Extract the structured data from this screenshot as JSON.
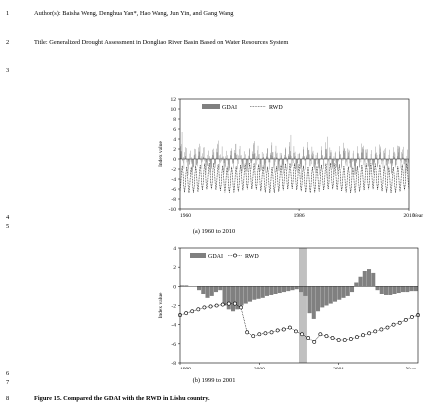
{
  "lines": [
    {
      "num": "1",
      "text": "Author(s): Baisha Weng, Denghua Yan*, Hao Wang, Jun Yin, and Gang Wang"
    },
    {
      "num": "2",
      "text": "Title: Generalized Drought Assessment in Dongliao River Basin Based on Water Resources System"
    },
    {
      "num": "3",
      "text": ""
    },
    {
      "num": "4",
      "text": ""
    },
    {
      "num": "5",
      "text": ""
    },
    {
      "num": "6",
      "text": ""
    },
    {
      "num": "7",
      "text": ""
    },
    {
      "num": "8",
      "text": "Figure 15. Compared the GDAI with the RWD in Lishu country."
    }
  ],
  "captions": {
    "a": "(a) 1960 to 2010",
    "b": "(b) 1999 to 2001"
  },
  "chart_data": [
    {
      "type": "bar+line",
      "ylabel": "Index value",
      "xlabel": "Year",
      "ylim": [
        -10,
        12
      ],
      "yticks": [
        -10,
        -8,
        -6,
        -4,
        -2,
        0,
        2,
        4,
        6,
        8,
        10,
        12
      ],
      "xticks": [
        "1960",
        "1986",
        "2010"
      ],
      "xlim": [
        1960,
        2010
      ],
      "legend": {
        "position": "top-center",
        "entries": [
          "GDAI",
          "RWD"
        ]
      },
      "series": [
        {
          "name": "GDAI",
          "kind": "bar",
          "color": "#808080",
          "description_values": "monthly values oscillating mostly between -3 and 3, occasional peaks to about 5"
        },
        {
          "name": "RWD",
          "kind": "dotted-line",
          "color": "#000000",
          "description_values": "seasonal cycles oscillating between about -1 and -7"
        }
      ]
    },
    {
      "type": "bar+line",
      "ylabel": "Index value",
      "xlabel": "Year",
      "ylim": [
        -8,
        4
      ],
      "yticks": [
        -8,
        -6,
        -4,
        -2,
        0,
        2,
        4
      ],
      "xticks": [
        "1999",
        "2000",
        "2001"
      ],
      "xlim": [
        1999,
        2002
      ],
      "legend": {
        "position": "top-left",
        "entries": [
          "GDAI",
          "RWD"
        ]
      },
      "highlight": {
        "start": 2000.5,
        "end": 2000.6,
        "color": "#c0c0c0"
      },
      "series": [
        {
          "name": "GDAI",
          "kind": "bar",
          "color": "#808080",
          "values": [
            0.1,
            0.1,
            0.0,
            0.0,
            -0.4,
            -0.8,
            -1.2,
            -1.0,
            -0.6,
            -0.4,
            -2.0,
            -2.4,
            -2.6,
            -2.4,
            -2.0,
            -1.8,
            -1.6,
            -1.4,
            -1.3,
            -1.2,
            -1.0,
            -0.9,
            -0.8,
            -0.7,
            -0.6,
            -0.5,
            -0.4,
            -0.3,
            -0.6,
            -1.0,
            -2.8,
            -3.4,
            -2.6,
            -2.2,
            -2.0,
            -1.8,
            -1.6,
            -1.4,
            -1.2,
            -1.0,
            -0.6,
            0.4,
            1.0,
            1.6,
            1.8,
            1.4,
            -0.4,
            -0.8,
            -0.9,
            -0.9,
            -0.8,
            -0.7,
            -0.6,
            -0.6,
            -0.5,
            -0.5
          ]
        },
        {
          "name": "RWD",
          "kind": "dotted-line-markers",
          "color": "#000000",
          "values": [
            -3.0,
            -2.8,
            -2.6,
            -2.4,
            -2.2,
            -2.1,
            -2.0,
            -1.9,
            -1.8,
            -1.8,
            -2.2,
            -4.8,
            -5.2,
            -5.0,
            -4.9,
            -4.8,
            -4.6,
            -4.5,
            -4.3,
            -4.7,
            -5.0,
            -5.4,
            -5.8,
            -5.0,
            -5.2,
            -5.4,
            -5.6,
            -5.6,
            -5.5,
            -5.3,
            -5.1,
            -4.9,
            -4.7,
            -4.5,
            -4.3,
            -4.0,
            -3.8,
            -3.5,
            -3.2,
            -3.0
          ]
        }
      ]
    }
  ]
}
